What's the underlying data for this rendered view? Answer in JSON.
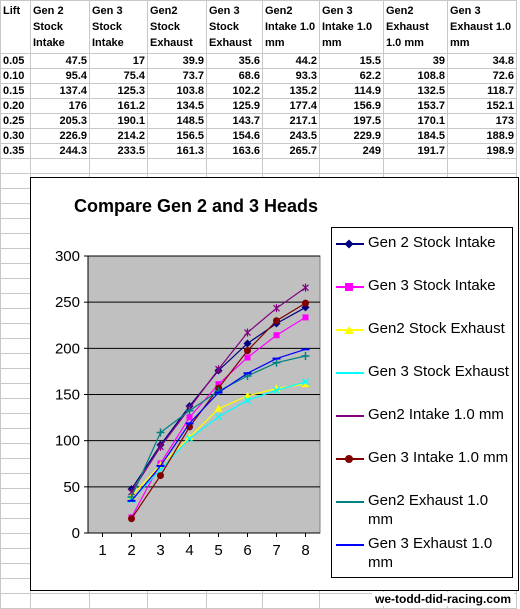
{
  "sheet": {
    "headers": [
      "Lift",
      "Gen 2 Stock Intake",
      "Gen 3 Stock Intake",
      "Gen2 Stock Exhaust",
      "Gen 3 Stock Exhaust",
      "Gen2 Intake 1.0 mm",
      "Gen 3 Intake 1.0 mm",
      "Gen2 Exhaust 1.0 mm",
      "Gen 3 Exhaust 1.0 mm"
    ],
    "rows": [
      [
        "0.05",
        "47.5",
        "17",
        "39.9",
        "35.6",
        "44.2",
        "15.5",
        "39",
        "34.8"
      ],
      [
        "0.10",
        "95.4",
        "75.4",
        "73.7",
        "68.6",
        "93.3",
        "62.2",
        "108.8",
        "72.6"
      ],
      [
        "0.15",
        "137.4",
        "125.3",
        "103.8",
        "102.2",
        "135.2",
        "114.9",
        "132.5",
        "118.7"
      ],
      [
        "0.20",
        "176",
        "161.2",
        "134.5",
        "125.9",
        "177.4",
        "156.9",
        "153.7",
        "152.1"
      ],
      [
        "0.25",
        "205.3",
        "190.1",
        "148.5",
        "143.7",
        "217.1",
        "197.5",
        "170.1",
        "173"
      ],
      [
        "0.30",
        "226.9",
        "214.2",
        "156.5",
        "154.6",
        "243.5",
        "229.9",
        "184.5",
        "188.9"
      ],
      [
        "0.35",
        "244.3",
        "233.5",
        "161.3",
        "163.6",
        "265.7",
        "249",
        "191.7",
        "198.9"
      ]
    ]
  },
  "chart_data": {
    "type": "line",
    "title": "Compare Gen 2 and 3 Heads",
    "x": [
      2,
      3,
      4,
      5,
      6,
      7,
      8
    ],
    "xticks": [
      "1",
      "2",
      "3",
      "4",
      "5",
      "6",
      "7",
      "8"
    ],
    "xlim": [
      0.5,
      8.5
    ],
    "ylim": [
      0,
      300
    ],
    "yticks": [
      "0",
      "50",
      "100",
      "150",
      "200",
      "250",
      "300"
    ],
    "grid": true,
    "legend_position": "right",
    "plot_background": "#c0c0c0",
    "series": [
      {
        "name": "Gen 2 Stock Intake",
        "color": "#000080",
        "marker": "diamond",
        "values": [
          47.5,
          95.4,
          137.4,
          176,
          205.3,
          226.9,
          244.3
        ]
      },
      {
        "name": "Gen 3 Stock Intake",
        "color": "#ff00ff",
        "marker": "square",
        "values": [
          17,
          75.4,
          125.3,
          161.2,
          190.1,
          214.2,
          233.5
        ]
      },
      {
        "name": "Gen2 Stock Exhaust",
        "color": "#ffff00",
        "marker": "triangle",
        "values": [
          39.9,
          73.7,
          103.8,
          134.5,
          148.5,
          156.5,
          161.3
        ]
      },
      {
        "name": "Gen 3 Stock Exhaust",
        "color": "#00ffff",
        "marker": "x",
        "values": [
          35.6,
          68.6,
          102.2,
          125.9,
          143.7,
          154.6,
          163.6
        ]
      },
      {
        "name": "Gen2 Intake 1.0 mm",
        "color": "#800080",
        "marker": "star",
        "values": [
          44.2,
          93.3,
          135.2,
          177.4,
          217.1,
          243.5,
          265.7
        ]
      },
      {
        "name": "Gen 3 Intake 1.0 mm",
        "color": "#800000",
        "marker": "circle",
        "values": [
          15.5,
          62.2,
          114.9,
          156.9,
          197.5,
          229.9,
          249
        ]
      },
      {
        "name": "Gen2 Exhaust 1.0 mm",
        "color": "#008080",
        "marker": "plus",
        "values": [
          39,
          108.8,
          132.5,
          153.7,
          170.1,
          184.5,
          191.7
        ]
      },
      {
        "name": "Gen 3 Exhaust 1.0 mm",
        "color": "#0000ff",
        "marker": "dash",
        "values": [
          34.8,
          72.6,
          118.7,
          152.1,
          173,
          188.9,
          198.9
        ]
      }
    ]
  },
  "watermark": "we-todd-did-racing.com"
}
